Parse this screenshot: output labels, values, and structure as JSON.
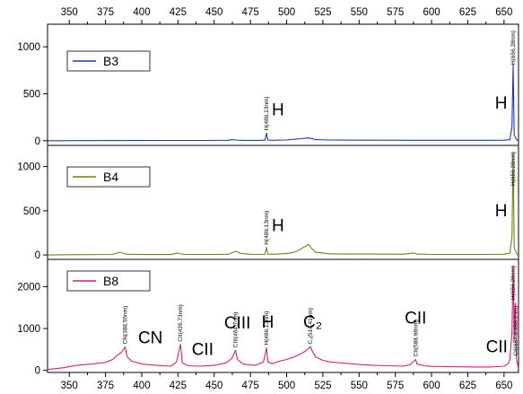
{
  "chart_data": [
    {
      "type": "line",
      "panel": "top",
      "xlim": [
        335,
        660
      ],
      "ylim": [
        -40,
        1240
      ],
      "xticks": [
        350,
        375,
        400,
        425,
        450,
        475,
        500,
        525,
        550,
        575,
        600,
        625,
        650
      ],
      "yticks": [
        0,
        500,
        1000
      ],
      "grid": false,
      "legend_position": "top-left",
      "series": [
        {
          "name": "B3",
          "color": "#2233bb",
          "x": [
            335,
            380,
            420,
            440,
            460,
            462,
            465,
            470,
            480,
            485,
            486.13,
            487,
            490,
            500,
            505,
            510,
            513,
            515,
            518,
            520,
            530,
            560,
            590,
            620,
            640,
            650,
            654,
            655.5,
            656.28,
            657,
            659,
            660
          ],
          "y": [
            0,
            2,
            3,
            3,
            5,
            12,
            8,
            4,
            4,
            6,
            80,
            8,
            5,
            8,
            15,
            22,
            28,
            30,
            20,
            12,
            8,
            6,
            5,
            5,
            5,
            6,
            12,
            150,
            810,
            60,
            5,
            3
          ]
        }
      ],
      "annotations": [
        {
          "x": 486.13,
          "text": "H(486,13nm)",
          "kind": "line-label"
        },
        {
          "x": 656.28,
          "text": "H(656,28nm)",
          "kind": "line-label"
        },
        {
          "x": 494,
          "y": 270,
          "text": "H",
          "kind": "element"
        },
        {
          "x": 648,
          "y": 340,
          "text": "H",
          "kind": "element"
        }
      ]
    },
    {
      "type": "line",
      "panel": "middle",
      "xlim": [
        335,
        660
      ],
      "ylim": [
        -40,
        1240
      ],
      "xticks": [
        350,
        375,
        400,
        425,
        450,
        475,
        500,
        525,
        550,
        575,
        600,
        625,
        650
      ],
      "yticks": [
        0,
        500,
        1000
      ],
      "grid": false,
      "legend_position": "top-left",
      "series": [
        {
          "name": "B4",
          "color": "#807a18",
          "x": [
            335,
            350,
            380,
            383,
            385,
            387,
            390,
            400,
            420,
            425,
            427,
            430,
            450,
            460,
            463,
            465,
            468,
            475,
            485,
            486.13,
            487,
            490,
            500,
            505,
            508,
            510,
            512,
            514,
            515,
            517,
            520,
            530,
            560,
            580,
            588,
            590,
            600,
            640,
            650,
            654,
            655.5,
            656.28,
            657,
            659,
            660
          ],
          "y": [
            0,
            3,
            6,
            22,
            30,
            20,
            8,
            5,
            5,
            22,
            12,
            6,
            6,
            8,
            30,
            42,
            18,
            8,
            6,
            85,
            10,
            8,
            15,
            30,
            50,
            70,
            90,
            105,
            120,
            80,
            30,
            12,
            10,
            8,
            22,
            10,
            6,
            6,
            8,
            20,
            200,
            1160,
            80,
            5,
            3
          ]
        }
      ],
      "annotations": [
        {
          "x": 486.13,
          "text": "H(486,13nm)",
          "kind": "line-label"
        },
        {
          "x": 656.28,
          "text": "H(656,28nm)",
          "kind": "line-label"
        },
        {
          "x": 494,
          "y": 270,
          "text": "H",
          "kind": "element"
        },
        {
          "x": 648,
          "y": 440,
          "text": "H",
          "kind": "element"
        }
      ]
    },
    {
      "type": "line",
      "panel": "bottom",
      "xlim": [
        335,
        660
      ],
      "ylim": [
        -50,
        2650
      ],
      "xticks": [
        350,
        375,
        400,
        425,
        450,
        475,
        500,
        525,
        550,
        575,
        600,
        625,
        650
      ],
      "yticks": [
        0,
        1000,
        2000
      ],
      "grid": false,
      "legend_position": "top-left",
      "series": [
        {
          "name": "B8",
          "color": "#e0197d",
          "x": [
            335,
            345,
            355,
            365,
            375,
            380,
            383,
            386,
            388.55,
            390,
            393,
            400,
            410,
            420,
            424,
            426.73,
            428,
            432,
            440,
            450,
            458,
            462,
            464.7,
            466,
            470,
            478,
            484,
            486.13,
            487,
            490,
            495,
            500,
            505,
            510,
            513,
            516.41,
            518,
            520,
            525,
            530,
            540,
            550,
            560,
            570,
            580,
            585,
            588.98,
            590,
            595,
            600,
            610,
            620,
            630,
            640,
            645,
            650,
            653,
            654,
            655.5,
            656.28,
            657,
            657.8,
            658.5,
            660
          ],
          "y": [
            20,
            60,
            120,
            150,
            190,
            260,
            360,
            430,
            560,
            320,
            220,
            150,
            120,
            100,
            200,
            620,
            180,
            110,
            100,
            120,
            180,
            280,
            480,
            260,
            150,
            120,
            200,
            540,
            200,
            160,
            220,
            260,
            320,
            400,
            460,
            560,
            440,
            320,
            240,
            200,
            170,
            140,
            120,
            110,
            100,
            130,
            260,
            150,
            110,
            95,
            90,
            85,
            80,
            80,
            90,
            100,
            160,
            260,
            900,
            2500,
            700,
            1600,
            280,
            40
          ]
        }
      ],
      "annotations": [
        {
          "x": 388.55,
          "text": "CN(388,55nm)",
          "kind": "line-label"
        },
        {
          "x": 426.73,
          "text": "CII(426,73nm)",
          "kind": "line-label"
        },
        {
          "x": 464.7,
          "text": "CIII(464,7nm)",
          "kind": "line-label"
        },
        {
          "x": 486.13,
          "text": "H(486,13nm)",
          "kind": "line-label"
        },
        {
          "x": 516.41,
          "text": "C₂(516,41nm)",
          "kind": "line-label"
        },
        {
          "x": 588.98,
          "text": "CII(588,98nm)",
          "kind": "line-label"
        },
        {
          "x": 656.28,
          "text": "H(656,28nm)",
          "kind": "line-label"
        },
        {
          "x": 658.2,
          "text": "CII(657,8;658,2nm)",
          "kind": "line-label"
        },
        {
          "x": 406,
          "y": 650,
          "text": "CN",
          "kind": "element"
        },
        {
          "x": 442,
          "y": 370,
          "text": "CII",
          "kind": "element"
        },
        {
          "x": 466,
          "y": 1000,
          "text": "CIII",
          "kind": "element"
        },
        {
          "x": 487,
          "y": 1020,
          "text": "H",
          "kind": "element"
        },
        {
          "x": 518,
          "y": 1020,
          "text": "C₂",
          "kind": "element"
        },
        {
          "x": 589,
          "y": 1120,
          "text": "CII",
          "kind": "element"
        },
        {
          "x": 645,
          "y": 430,
          "text": "CII",
          "kind": "element"
        }
      ]
    }
  ]
}
